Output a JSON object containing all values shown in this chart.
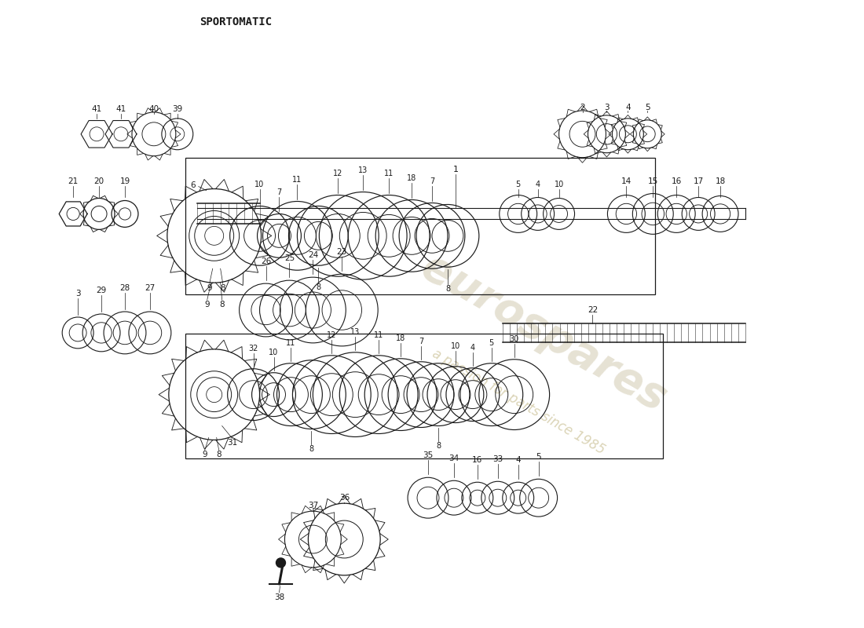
{
  "title": "SPORTOMATIC",
  "bg_color": "#ffffff",
  "line_color": "#1a1a1a",
  "watermark1_color": "#c8bfa0",
  "watermark2_color": "#b8aa70"
}
